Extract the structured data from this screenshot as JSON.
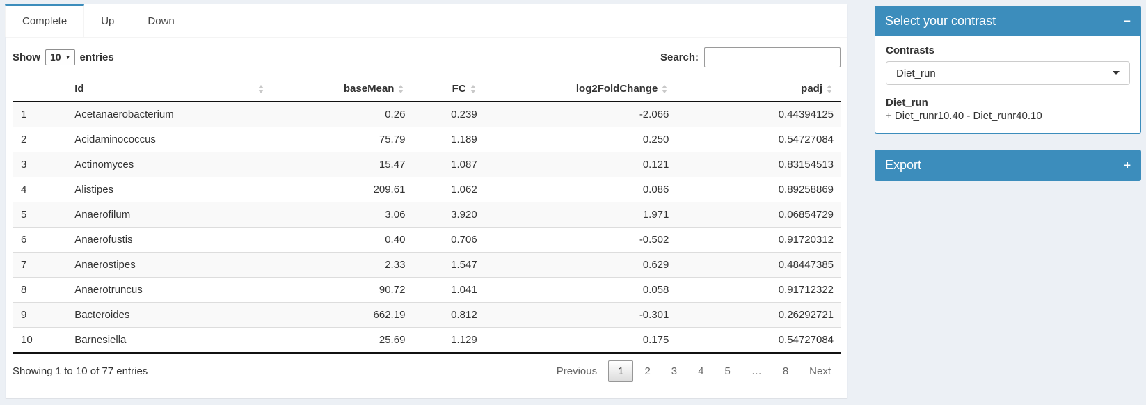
{
  "tabs": {
    "complete": "Complete",
    "up": "Up",
    "down": "Down"
  },
  "controls": {
    "show_label": "Show",
    "entries_value": "10",
    "entries_label": "entries",
    "search_label": "Search:",
    "search_value": ""
  },
  "table": {
    "columns": {
      "index": "",
      "id": "Id",
      "base_mean": "baseMean",
      "fc": "FC",
      "log2fc": "log2FoldChange",
      "padj": "padj"
    },
    "rows": [
      [
        "1",
        "Acetanaerobacterium",
        "0.26",
        "0.239",
        "-2.066",
        "0.44394125"
      ],
      [
        "2",
        "Acidaminococcus",
        "75.79",
        "1.189",
        "0.250",
        "0.54727084"
      ],
      [
        "3",
        "Actinomyces",
        "15.47",
        "1.087",
        "0.121",
        "0.83154513"
      ],
      [
        "4",
        "Alistipes",
        "209.61",
        "1.062",
        "0.086",
        "0.89258869"
      ],
      [
        "5",
        "Anaerofilum",
        "3.06",
        "3.920",
        "1.971",
        "0.06854729"
      ],
      [
        "6",
        "Anaerofustis",
        "0.40",
        "0.706",
        "-0.502",
        "0.91720312"
      ],
      [
        "7",
        "Anaerostipes",
        "2.33",
        "1.547",
        "0.629",
        "0.48447385"
      ],
      [
        "8",
        "Anaerotruncus",
        "90.72",
        "1.041",
        "0.058",
        "0.91712322"
      ],
      [
        "9",
        "Bacteroides",
        "662.19",
        "0.812",
        "-0.301",
        "0.26292721"
      ],
      [
        "10",
        "Barnesiella",
        "25.69",
        "1.129",
        "0.175",
        "0.54727084"
      ]
    ]
  },
  "footer": {
    "showing_info": "Showing 1 to 10 of 77 entries",
    "pagination": {
      "previous": "Previous",
      "pages": [
        "1",
        "2",
        "3",
        "4",
        "5",
        "…",
        "8"
      ],
      "current_page": "1",
      "next": "Next"
    }
  },
  "contrast_box": {
    "title": "Select your contrast",
    "collapse_icon": "−",
    "contrasts_label": "Contrasts",
    "selected_contrast": "Diet_run",
    "contrast_detail_name": "Diet_run",
    "contrast_detail_formula": "+ Diet_runr10.40 - Diet_runr40.10"
  },
  "export_box": {
    "title": "Export",
    "expand_icon": "+"
  },
  "colors": {
    "accent_blue": "#3c8dbc",
    "page_background": "#ecf0f5",
    "stripe_row": "#f9f9f9"
  }
}
